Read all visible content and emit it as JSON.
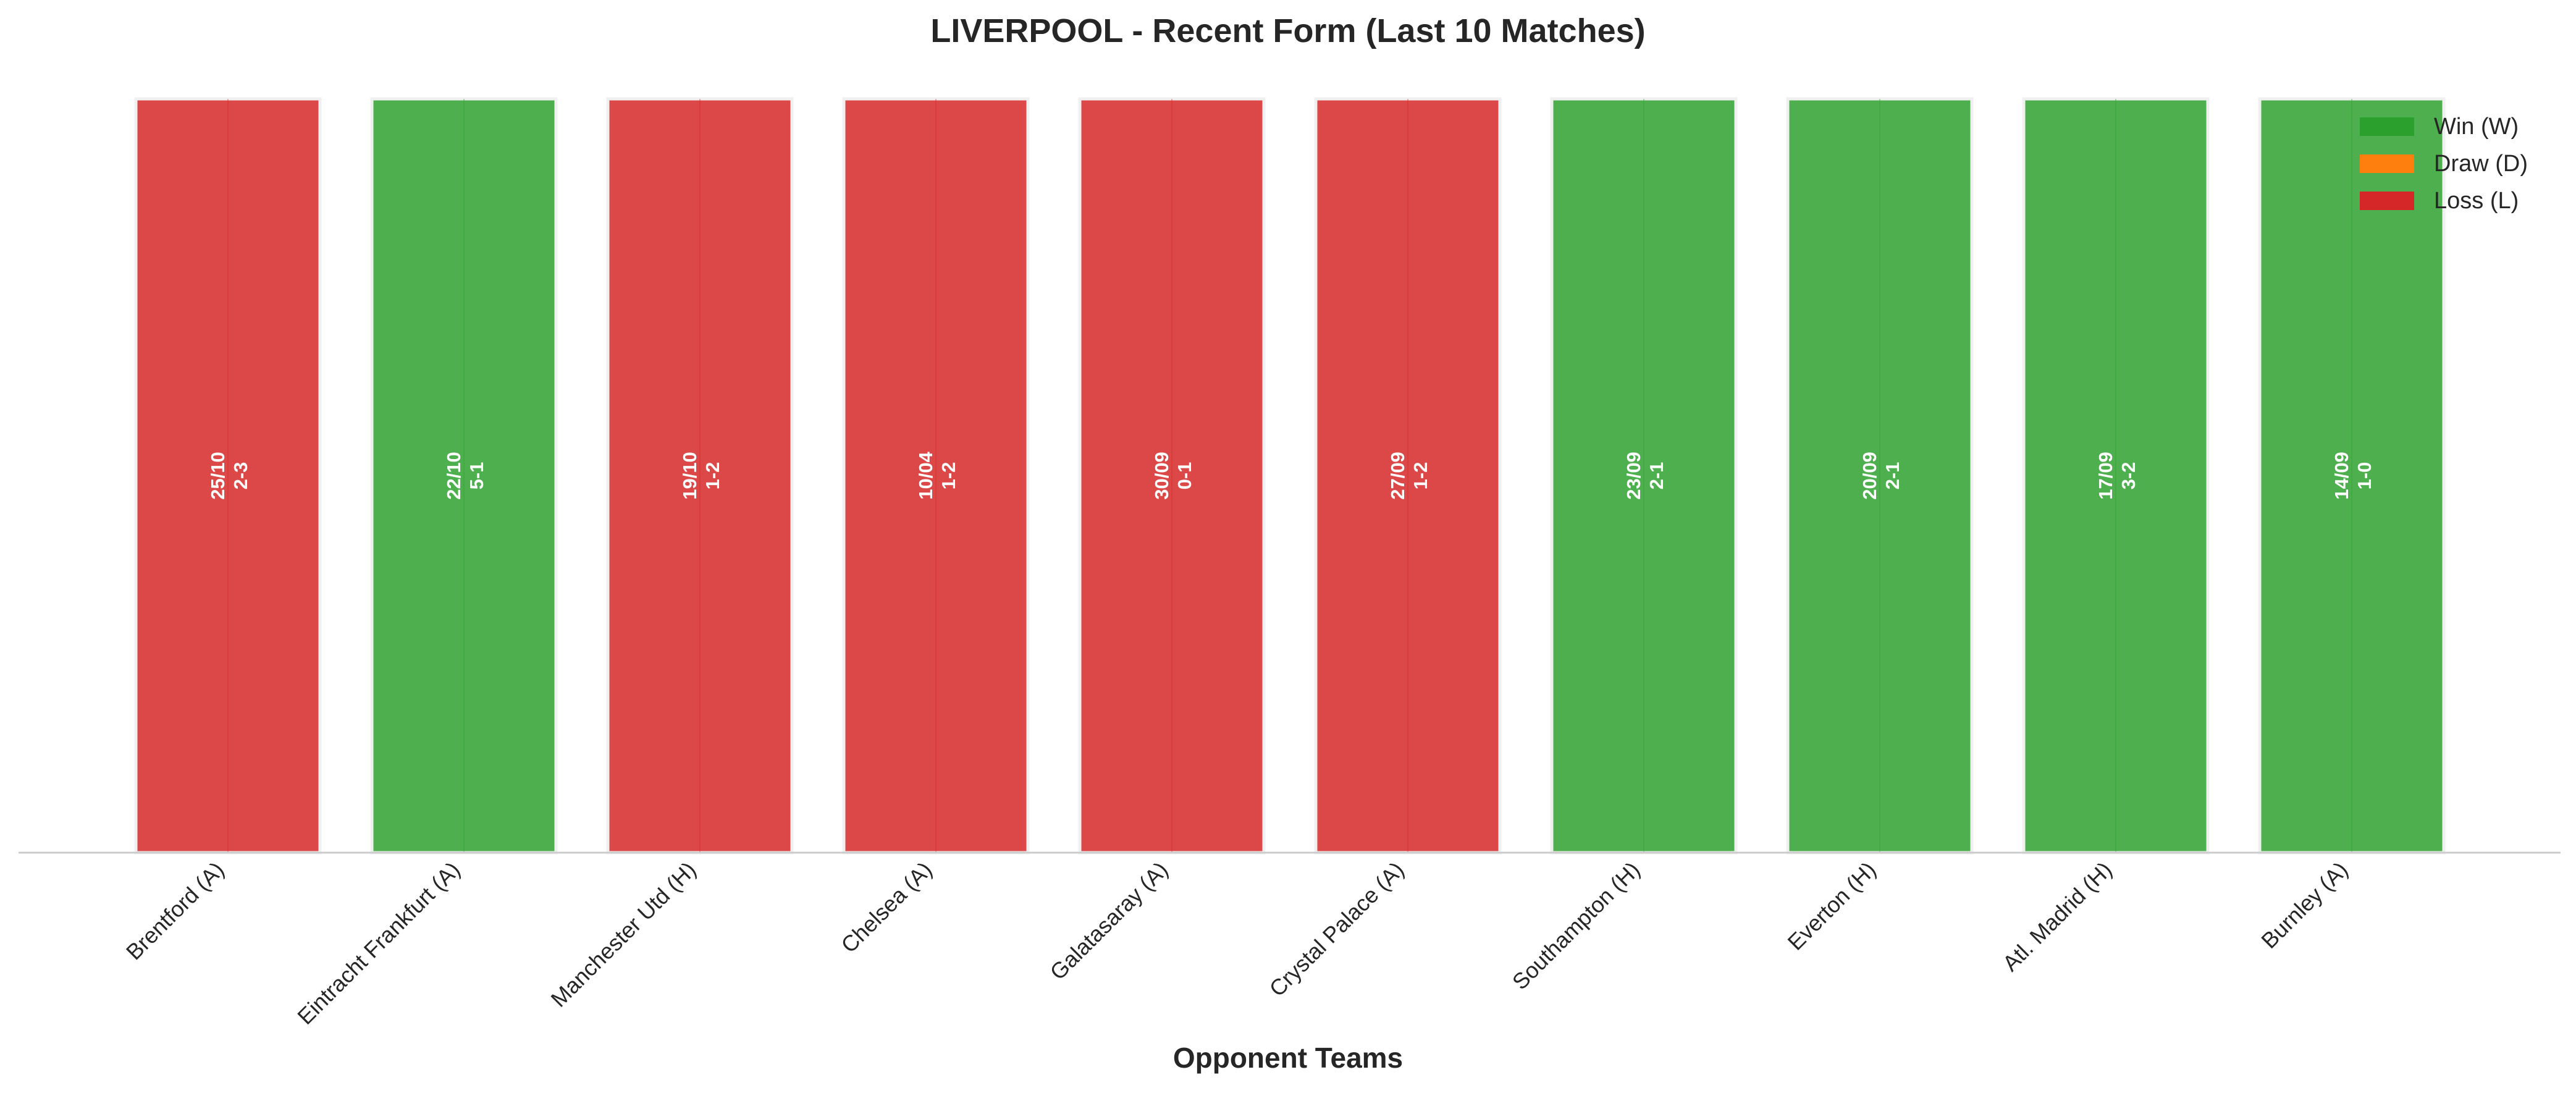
{
  "chart_data": {
    "type": "bar",
    "title": "LIVERPOOL - Recent Form (Last 10 Matches)",
    "xlabel": "Opponent Teams",
    "ylabel": "",
    "grid": false,
    "legend_position": "top-right",
    "categories": [
      "Brentford (A)",
      "Eintracht Frankfurt (A)",
      "Manchester Utd (H)",
      "Chelsea (A)",
      "Galatasaray (A)",
      "Crystal Palace (A)",
      "Southampton (H)",
      "Everton (H)",
      "Atl. Madrid (H)",
      "Burnley (A)"
    ],
    "values": [
      1,
      1,
      1,
      1,
      1,
      1,
      1,
      1,
      1,
      1
    ],
    "results": [
      "L",
      "W",
      "L",
      "L",
      "L",
      "L",
      "W",
      "W",
      "W",
      "W"
    ],
    "dates": [
      "25/10",
      "22/10",
      "19/10",
      "10/04",
      "30/09",
      "27/09",
      "23/09",
      "20/09",
      "17/09",
      "14/09"
    ],
    "scores": [
      "2-3",
      "5-1",
      "1-2",
      "1-2",
      "0-1",
      "1-2",
      "2-1",
      "2-1",
      "3-2",
      "1-0"
    ],
    "legend": [
      {
        "key": "W",
        "label": "Win (W)",
        "color": "#2ca02c",
        "bar_color": "#4daf4d"
      },
      {
        "key": "D",
        "label": "Draw (D)",
        "color": "#ff7f0e",
        "bar_color": "#ff9933"
      },
      {
        "key": "L",
        "label": "Loss (L)",
        "color": "#d62728",
        "bar_color": "#dc4848"
      }
    ]
  }
}
